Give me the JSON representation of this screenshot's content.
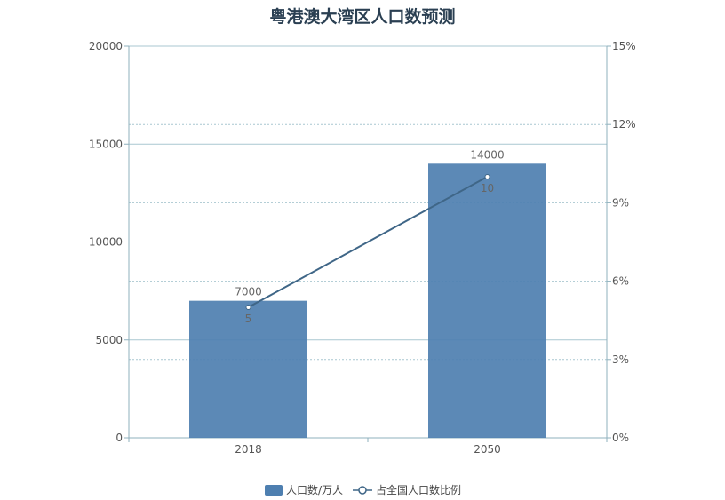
{
  "chart_data": {
    "type": "bar",
    "title": "粤港澳大湾区人口数预测",
    "categories": [
      "2018",
      "2050"
    ],
    "series": [
      {
        "name": "人口数/万人",
        "type": "bar",
        "axis": "left",
        "values": [
          7000,
          14000
        ],
        "color": "#4e7fb0"
      },
      {
        "name": "占全国人口数比例",
        "type": "line",
        "axis": "right",
        "values": [
          5,
          10
        ],
        "color": "#3f6687"
      }
    ],
    "y_left": {
      "min": 0,
      "max": 20000,
      "ticks": [
        "0",
        "5000",
        "10000",
        "15000",
        "20000"
      ]
    },
    "y_right": {
      "min": 0,
      "max": 15,
      "ticks": [
        "0%",
        "3%",
        "6%",
        "9%",
        "12%",
        "15%"
      ]
    },
    "grid": true,
    "legend_position": "bottom"
  }
}
